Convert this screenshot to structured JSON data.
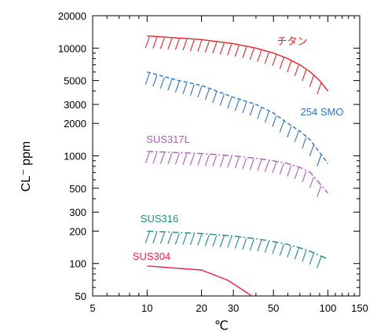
{
  "chart_data": {
    "type": "line",
    "title": "",
    "xlabel": "℃",
    "ylabel": "CL⁻ ppm",
    "x_scale": "log",
    "y_scale": "log",
    "xlim": [
      5,
      150
    ],
    "ylim": [
      50,
      20000
    ],
    "x_ticks": [
      5,
      10,
      20,
      30,
      50,
      100,
      150
    ],
    "x_tick_labels": [
      "5",
      "10",
      "20",
      "30",
      "50",
      "100",
      "150"
    ],
    "y_ticks": [
      50,
      100,
      200,
      300,
      500,
      1000,
      2000,
      3000,
      5000,
      10000,
      20000
    ],
    "y_tick_labels": [
      "50",
      "100",
      "200",
      "300",
      "500",
      "1000",
      "2000",
      "3000",
      "5000",
      "10000",
      "20000"
    ],
    "grid": false,
    "legend": "none (series labeled directly on plot)",
    "series": [
      {
        "name": "チタン",
        "color": "#e8202a",
        "style": "solid-hatched",
        "x": [
          10,
          20,
          30,
          40,
          50,
          60,
          70,
          80,
          90,
          100
        ],
        "y": [
          13000,
          12000,
          11000,
          10000,
          9000,
          8000,
          7000,
          6000,
          5000,
          4000
        ]
      },
      {
        "name": "254 SMO",
        "color": "#2b73c2",
        "style": "dashed-hatched",
        "x": [
          10,
          15,
          20,
          30,
          40,
          50,
          60,
          70,
          80,
          100
        ],
        "y": [
          6000,
          5000,
          4500,
          3500,
          3000,
          2500,
          2000,
          1700,
          1400,
          850
        ]
      },
      {
        "name": "SUS317L",
        "color": "#b05ab8",
        "style": "dashdot-hatched",
        "x": [
          10,
          20,
          30,
          40,
          50,
          60,
          70,
          80,
          100
        ],
        "y": [
          1100,
          1050,
          1000,
          950,
          900,
          850,
          780,
          700,
          450
        ]
      },
      {
        "name": "SUS316",
        "color": "#1e8a80",
        "style": "dashdot-hatched",
        "x": [
          10,
          20,
          30,
          40,
          50,
          60,
          70,
          80,
          100
        ],
        "y": [
          200,
          190,
          180,
          170,
          160,
          150,
          140,
          130,
          110
        ]
      },
      {
        "name": "SUS304",
        "color": "#e8204a",
        "style": "solid",
        "x": [
          10,
          20,
          28,
          38
        ],
        "y": [
          95,
          87,
          70,
          50
        ]
      }
    ]
  }
}
